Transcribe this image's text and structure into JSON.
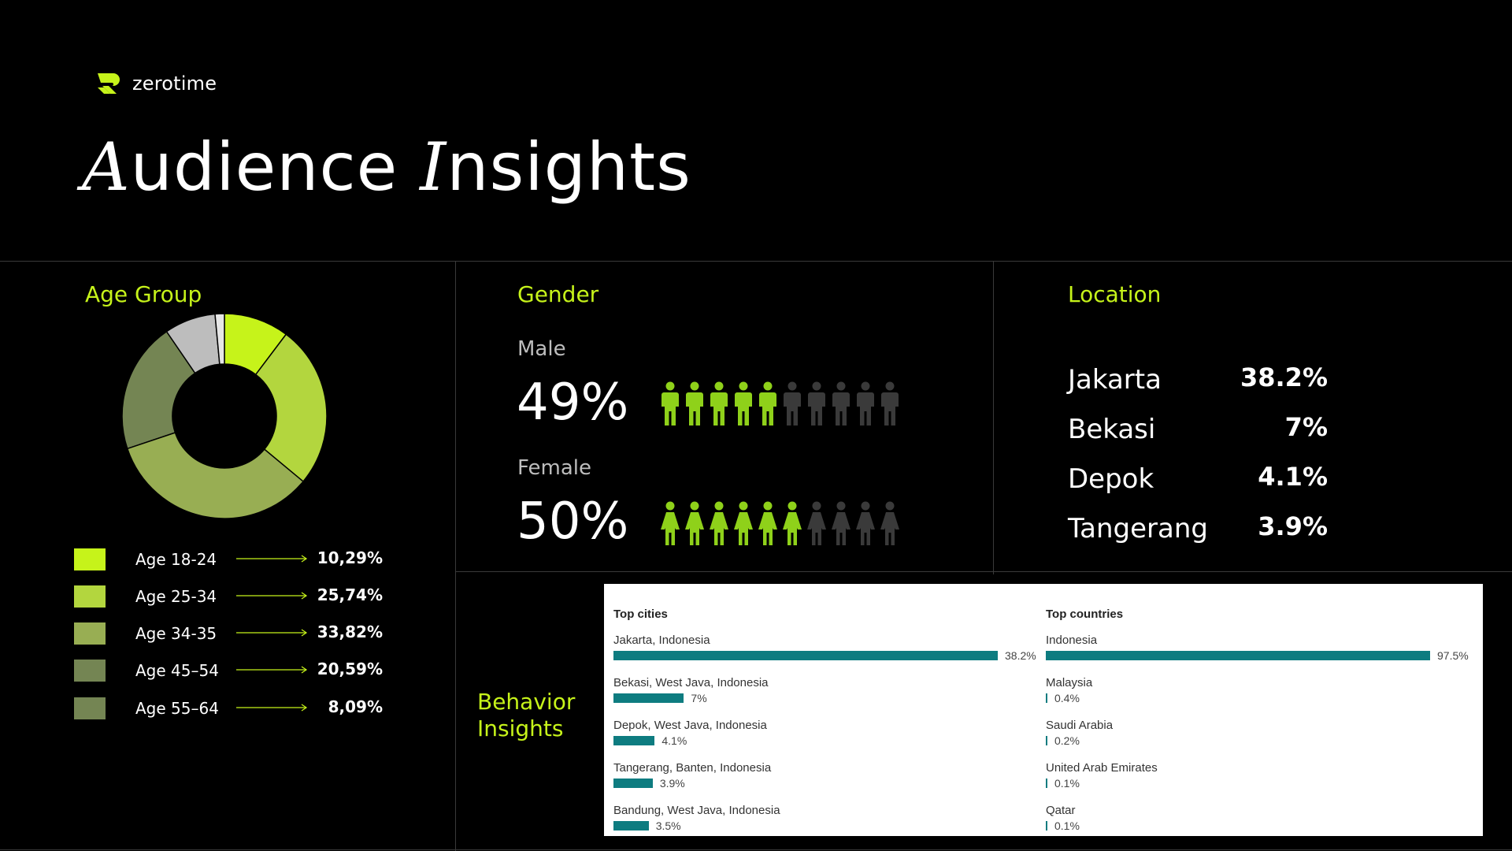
{
  "brand": {
    "name": "zerotime",
    "accent": "#c6f31a"
  },
  "title": {
    "first_letter": "A",
    "rest": "udience ",
    "second_letter": "I",
    "second_rest": "nsights"
  },
  "sections": {
    "age": "Age Group",
    "gender": "Gender",
    "location": "Location",
    "behavior_line1": "Behavior",
    "behavior_line2": "Insights"
  },
  "chart_data": [
    {
      "type": "pie",
      "title": "Age Group",
      "slices": [
        {
          "label": "Age 18-24",
          "value": 10.29,
          "display": "10,29%",
          "color": "#c6f31a"
        },
        {
          "label": "Age 25-34",
          "value": 25.74,
          "display": "25,74%",
          "color": "#b3d63e"
        },
        {
          "label": "Age 34-35",
          "value": 33.82,
          "display": "33,82%",
          "color": "#98ae53"
        },
        {
          "label": "Age 45–54",
          "value": 20.59,
          "display": "20,59%",
          "color": "#748553"
        },
        {
          "label": "Age 55–64",
          "value": 8.09,
          "display": "8,09%",
          "color": "#bdbdbd"
        },
        {
          "label": "",
          "value": 1.47,
          "display": "",
          "color": "#e6e6e6"
        }
      ],
      "legend_colors": [
        "#c6f31a",
        "#b3d63e",
        "#98ae53",
        "#748553",
        "#748553"
      ]
    },
    {
      "type": "bar",
      "title": "Top cities",
      "categories": [
        "Jakarta, Indonesia",
        "Bekasi, West Java, Indonesia",
        "Depok, West Java, Indonesia",
        "Tangerang, Banten, Indonesia",
        "Bandung, West Java, Indonesia"
      ],
      "values": [
        38.2,
        7,
        4.1,
        3.9,
        3.5
      ],
      "labels": [
        "38.2%",
        "7%",
        "4.1%",
        "3.9%",
        "3.5%"
      ],
      "color": "#0e7c80"
    },
    {
      "type": "bar",
      "title": "Top countries",
      "categories": [
        "Indonesia",
        "Malaysia",
        "Saudi Arabia",
        "United Arab Emirates",
        "Qatar"
      ],
      "values": [
        97.5,
        0.4,
        0.2,
        0.1,
        0.1
      ],
      "labels": [
        "97.5%",
        "0.4%",
        "0.2%",
        "0.1%",
        "0.1%"
      ],
      "color": "#0e7c80"
    }
  ],
  "gender": {
    "male": {
      "label": "Male",
      "pct": "49%",
      "filled": 5,
      "total": 10
    },
    "female": {
      "label": "Female",
      "pct": "50%",
      "filled": 6,
      "total": 10
    },
    "filled_color": "#8fd11a",
    "empty_color": "#3a3a3a"
  },
  "location": [
    {
      "name": "Jakarta",
      "value": "38.2%"
    },
    {
      "name": "Bekasi",
      "value": "7%"
    },
    {
      "name": "Depok",
      "value": "4.1%"
    },
    {
      "name": "Tangerang",
      "value": "3.9%"
    }
  ]
}
